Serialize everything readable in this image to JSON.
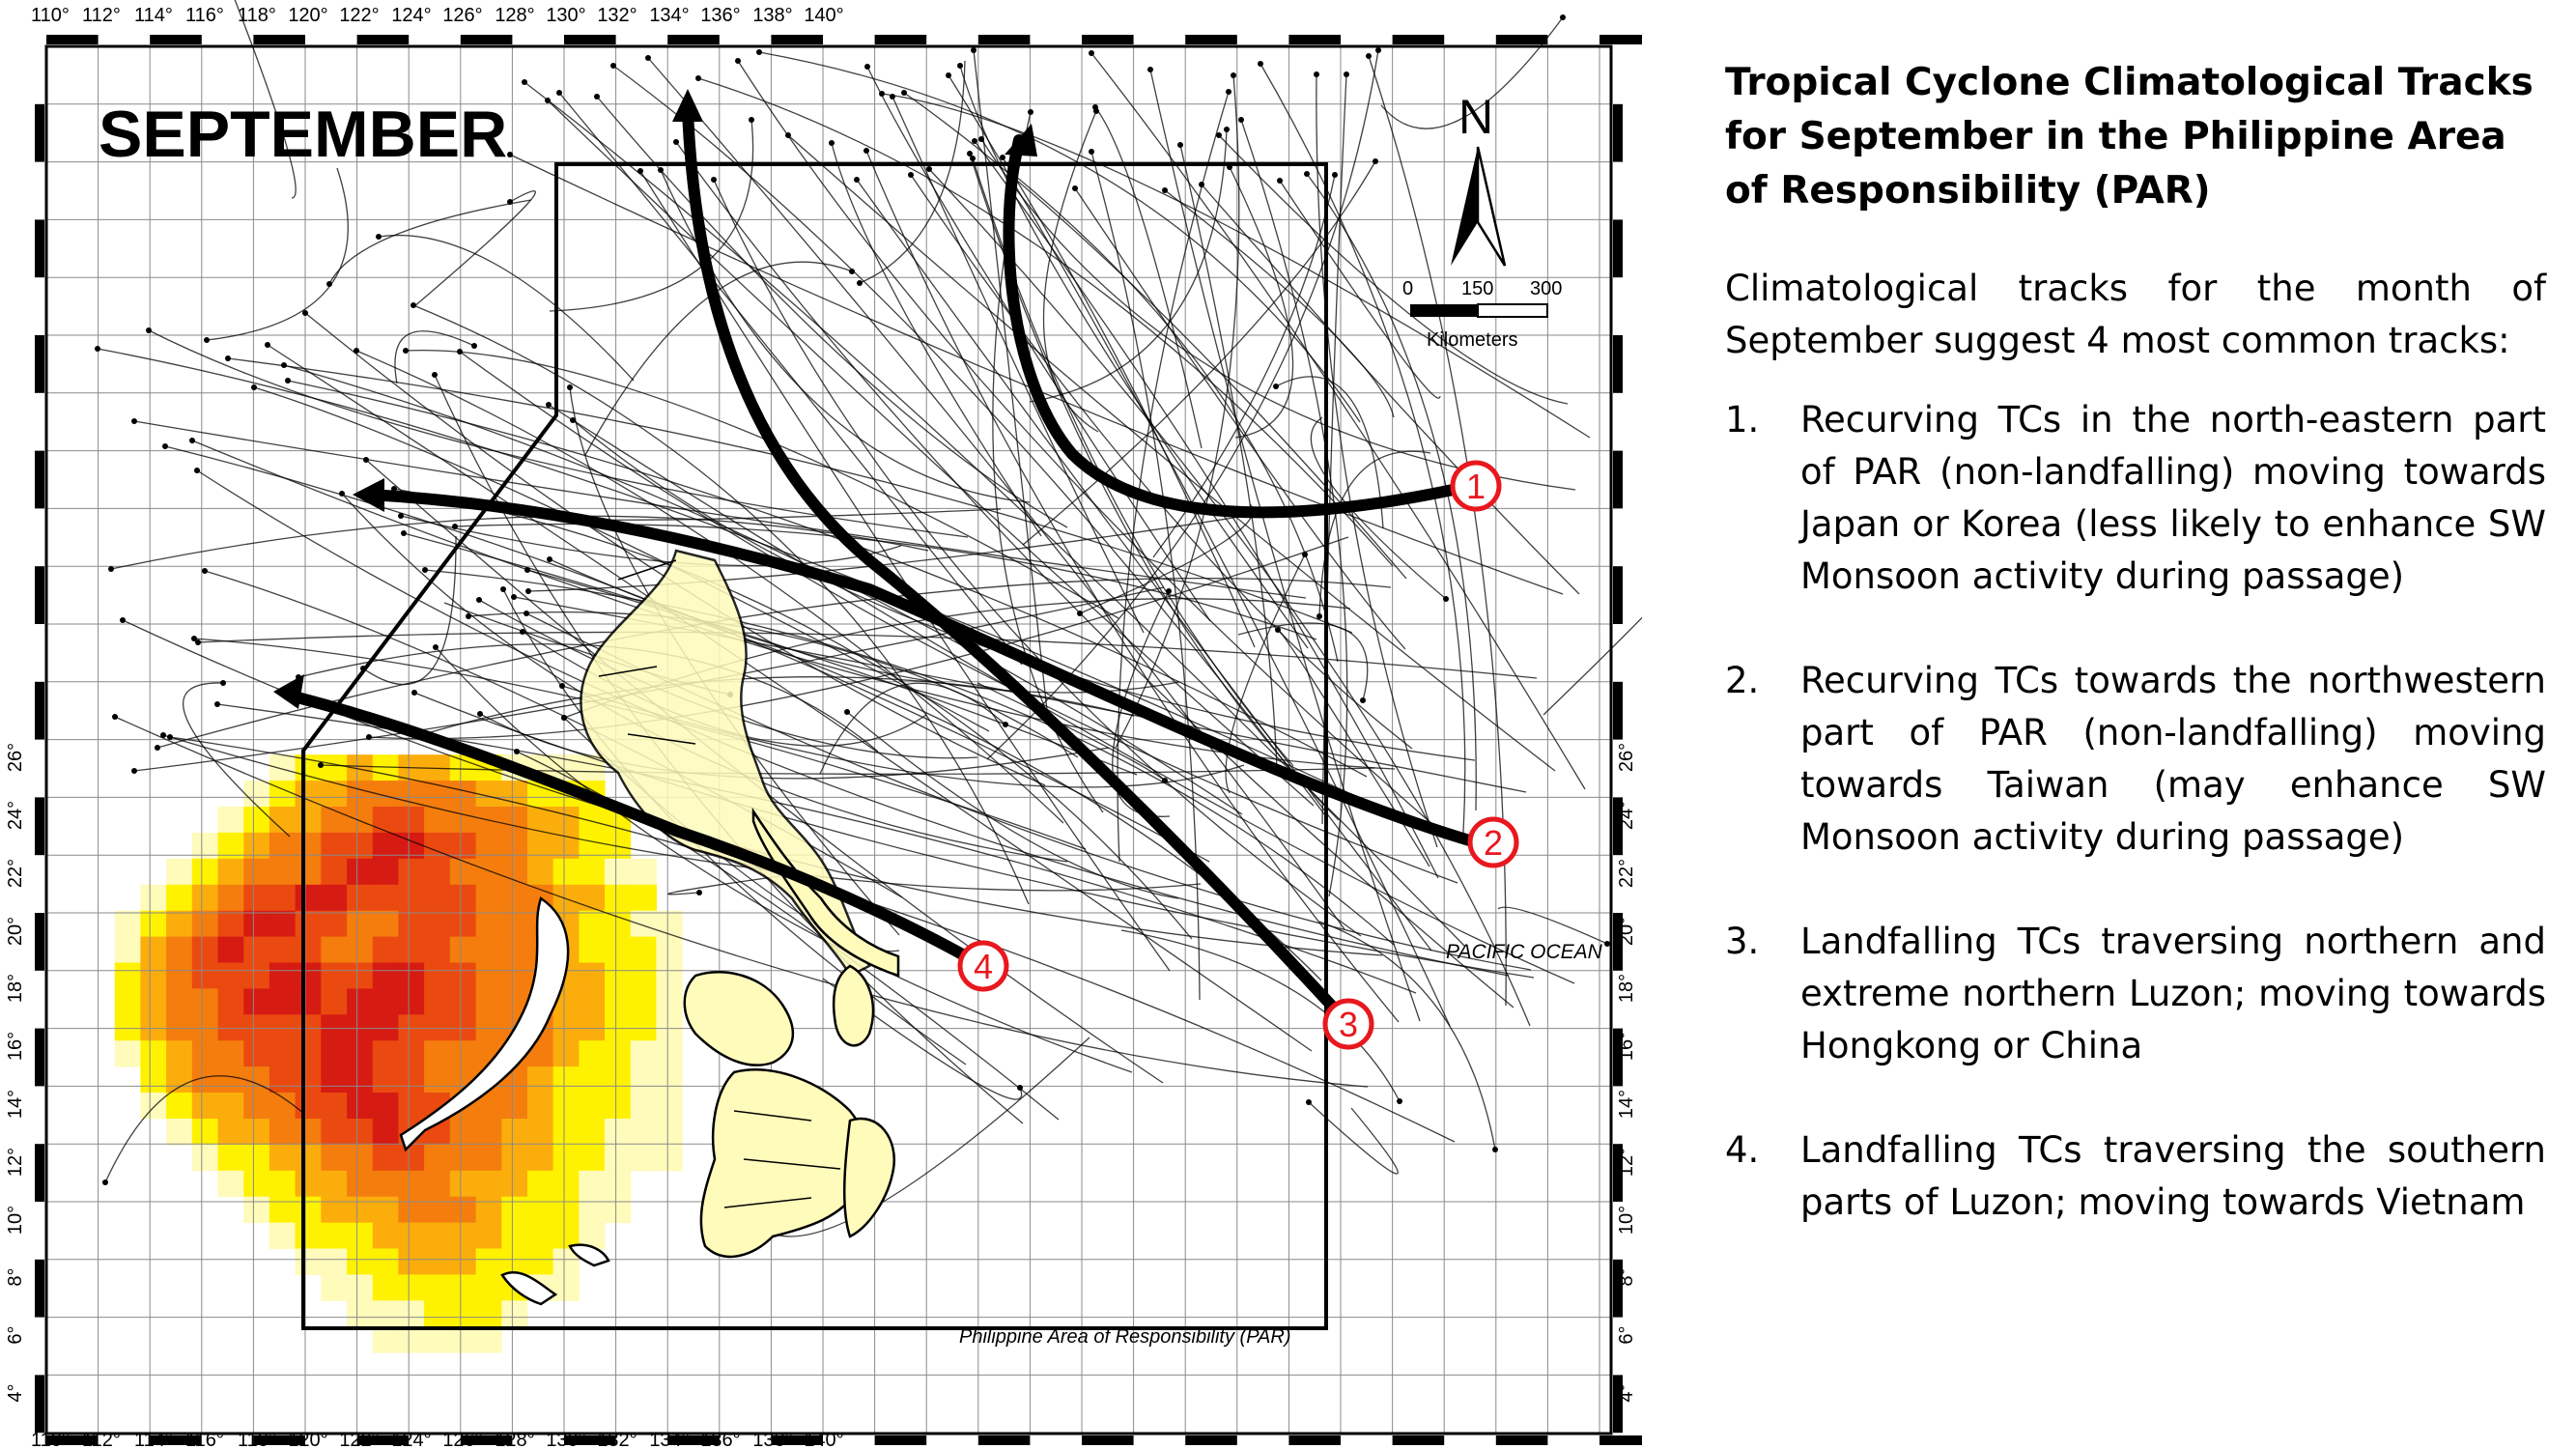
{
  "map": {
    "month_label": "SEPTEMBER",
    "par_label": "Philippine Area of Responsibility (PAR)",
    "ocean_label": "PACIFIC OCEAN",
    "north_label": "N",
    "scale": {
      "ticks": [
        "0",
        "150",
        "300"
      ],
      "unit": "Kilometers"
    },
    "lon_labels": [
      "110°",
      "112°",
      "114°",
      "116°",
      "118°",
      "120°",
      "122°",
      "124°",
      "126°",
      "128°",
      "130°",
      "132°",
      "134°",
      "136°",
      "138°",
      "140°"
    ],
    "lat_labels": [
      "4°",
      "6°",
      "8°",
      "10°",
      "12°",
      "14°",
      "16°",
      "18°",
      "20°",
      "22°",
      "24°",
      "26°"
    ],
    "track_markers": [
      "1",
      "2",
      "3",
      "4"
    ],
    "colors": {
      "dark_red": "#d61b12",
      "red_orange": "#ea4a10",
      "orange": "#f47d0d",
      "light_orange": "#fbad0c",
      "yellow": "#fff200",
      "pale_yellow": "#fffbbb",
      "marker": "#e8181e"
    }
  },
  "panel": {
    "title": "Tropical Cyclone Climatological  Tracks for September in the Philippine Area of Responsibility (PAR)",
    "intro_line1": "Climatological tracks for the month of",
    "intro_line2": "September suggest 4 most common tracks:",
    "items": [
      {
        "num": "1.",
        "text": "Recurving TCs in the north-eastern part of PAR (non-landfalling) moving towards Japan or Korea (less likely to enhance SW Monsoon activity during passage)"
      },
      {
        "num": "2.",
        "text": "Recurving TCs towards the northwestern part of PAR (non-landfalling) moving towards Taiwan (may enhance SW Monsoon activity during passage)"
      },
      {
        "num": "3.",
        "text": "Landfalling TCs traversing northern and extreme northern Luzon;  moving towards Hongkong or China"
      },
      {
        "num": "4.",
        "text": "Landfalling TCs traversing the southern parts of Luzon; moving towards Vietnam"
      }
    ]
  }
}
